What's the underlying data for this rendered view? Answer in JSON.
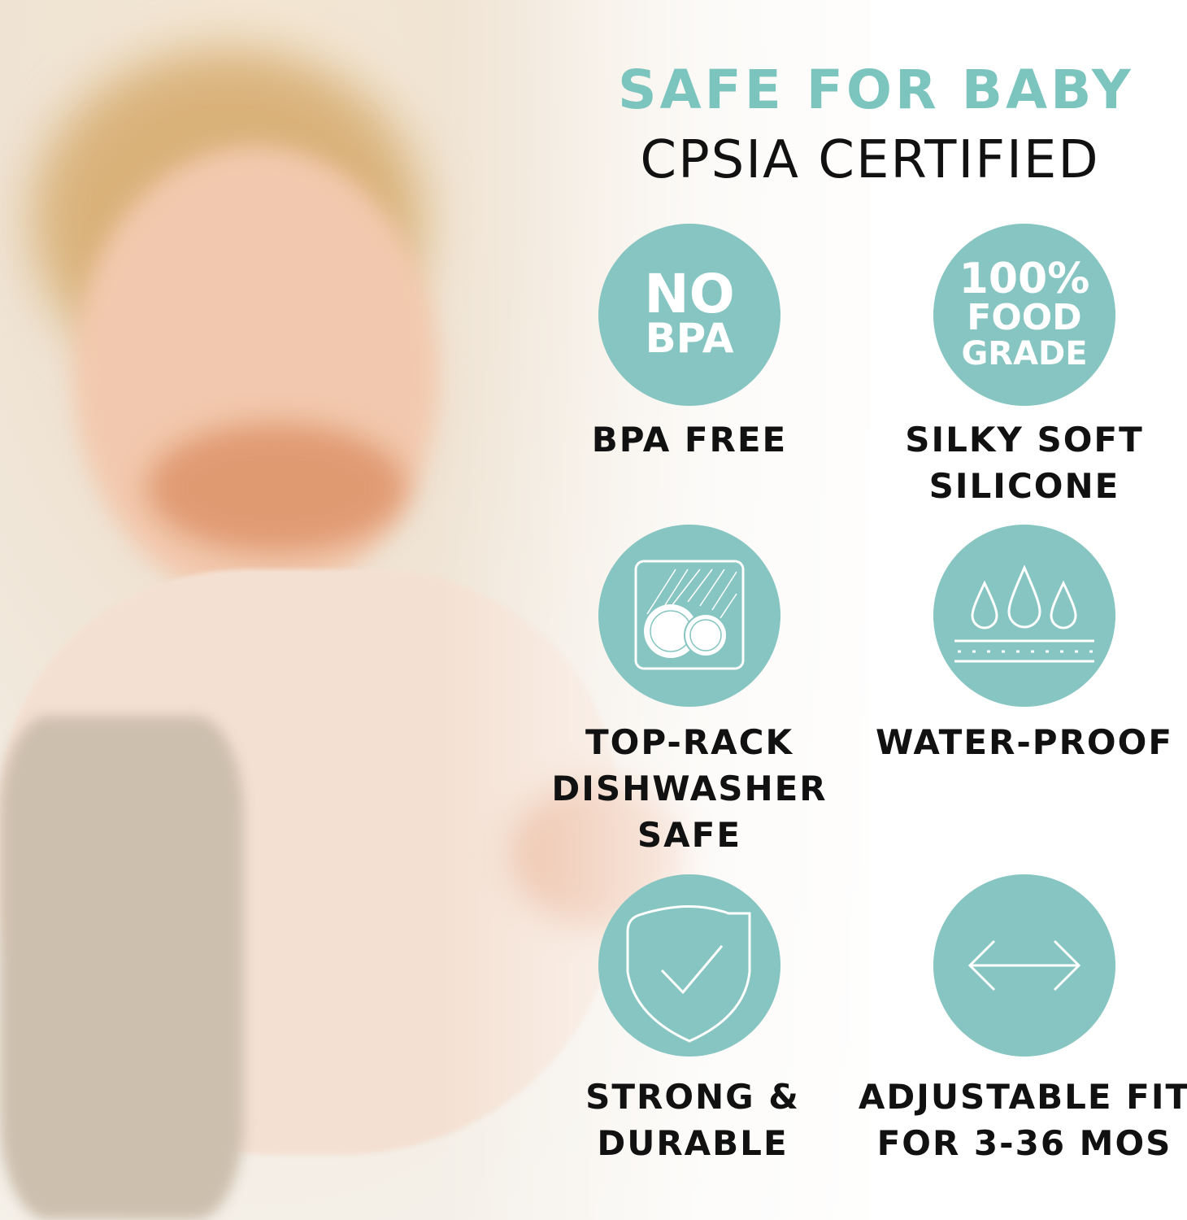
{
  "colors": {
    "teal": "#86c5c1",
    "accent": "#7cc4be",
    "text": "#111111"
  },
  "headline": "SAFE FOR BABY",
  "subheadline": "CPSIA CERTIFIED",
  "features": [
    {
      "icon": "no-bpa-badge",
      "badge_lines": [
        "NO",
        "BPA"
      ],
      "label_lines": [
        "BPA FREE"
      ]
    },
    {
      "icon": "food-grade-badge",
      "badge_lines": [
        "100%",
        "FOOD",
        "GRADE"
      ],
      "label_lines": [
        "SILKY SOFT",
        "SILICONE"
      ]
    },
    {
      "icon": "dishwasher-icon",
      "label_lines": [
        "TOP-RACK",
        "DISHWASHER",
        "SAFE"
      ]
    },
    {
      "icon": "water-drops-icon",
      "label_lines": [
        "WATER-PROOF"
      ]
    },
    {
      "icon": "shield-check-icon",
      "label_lines": [
        "STRONG &",
        "DURABLE"
      ]
    },
    {
      "icon": "double-arrow-icon",
      "label_lines": [
        "ADJUSTABLE FIT",
        "FOR 3-36 MOS"
      ]
    }
  ]
}
